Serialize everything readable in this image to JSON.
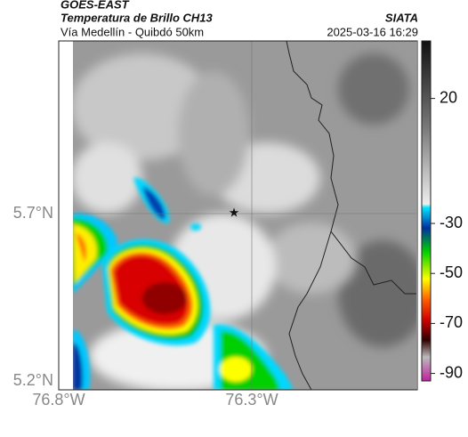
{
  "header": {
    "source": "GOES-EAST",
    "product": "Temperatura de Brillo CH13",
    "region": "Vía Medellín - Quibdó 50km",
    "brand": "SIATA",
    "datetime": "2025-03-16 16:29"
  },
  "map": {
    "lat_ticks": [
      "5.7°N",
      "5.2°N"
    ],
    "lon_ticks": [
      "76.8°W",
      "76.3°W"
    ]
  },
  "colorbar": {
    "clim": [
      43,
      -93
    ],
    "ticks": [
      20,
      -30,
      -50,
      -70,
      -90
    ]
  }
}
